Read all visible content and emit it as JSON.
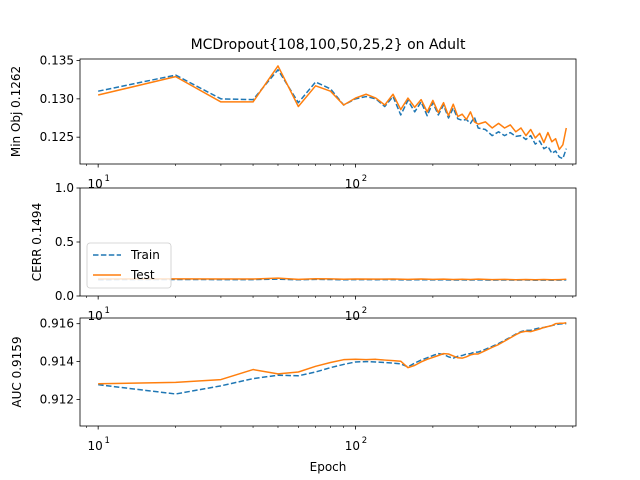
{
  "chart_data": {
    "type": "line",
    "title": "MCDropout{108,100,50,25,2} on Adult",
    "xlabel": "Epoch",
    "xscale": "log",
    "xlim": [
      8.5,
      720
    ],
    "x_major_ticks": [
      {
        "value": 10,
        "base": "10",
        "exp": "1"
      },
      {
        "value": 100,
        "base": "10",
        "exp": "2"
      }
    ],
    "colors": {
      "Train": "#1f77b4",
      "Test": "#ff7f0e"
    },
    "legend": {
      "panel": 1,
      "placement": "lower-left",
      "entries": [
        "Train",
        "Test"
      ]
    },
    "panels": [
      {
        "ylabel": "Min Obj 0.1262",
        "ylim": [
          0.1215,
          0.1352
        ],
        "yticks": [
          "0.125",
          "0.130",
          "0.135"
        ],
        "ytick_values": [
          0.125,
          0.13,
          0.135
        ],
        "series": [
          {
            "name": "Train",
            "style": "dashed",
            "x": [
              10,
              20,
              30,
              40,
              50,
              60,
              70,
              80,
              90,
              100,
              110,
              120,
              130,
              140,
              150,
              160,
              170,
              180,
              190,
              200,
              210,
              220,
              230,
              240,
              250,
              260,
              270,
              280,
              290,
              300,
              320,
              340,
              360,
              380,
              400,
              420,
              440,
              460,
              480,
              500,
              520,
              540,
              560,
              580,
              600,
              620,
              640,
              660
            ],
            "y": [
              0.131,
              0.1331,
              0.13,
              0.1299,
              0.1338,
              0.1295,
              0.1322,
              0.1313,
              0.1292,
              0.13,
              0.1303,
              0.13,
              0.129,
              0.1303,
              0.1279,
              0.1298,
              0.1283,
              0.1296,
              0.1278,
              0.1295,
              0.1279,
              0.1292,
              0.1275,
              0.1288,
              0.1274,
              0.1272,
              0.1273,
              0.1268,
              0.1276,
              0.1262,
              0.126,
              0.1252,
              0.1257,
              0.1252,
              0.1256,
              0.1251,
              0.1252,
              0.1247,
              0.1252,
              0.1241,
              0.1245,
              0.1235,
              0.1238,
              0.1229,
              0.1232,
              0.1224,
              0.1222,
              0.1235
            ]
          },
          {
            "name": "Test",
            "style": "solid",
            "x": [
              10,
              20,
              30,
              40,
              50,
              60,
              70,
              80,
              90,
              100,
              110,
              120,
              130,
              140,
              150,
              160,
              170,
              180,
              190,
              200,
              210,
              220,
              230,
              240,
              250,
              260,
              270,
              280,
              290,
              300,
              320,
              340,
              360,
              380,
              400,
              420,
              440,
              460,
              480,
              500,
              520,
              540,
              560,
              580,
              600,
              620,
              640,
              660
            ],
            "y": [
              0.1305,
              0.1329,
              0.1296,
              0.1296,
              0.1343,
              0.129,
              0.1317,
              0.131,
              0.1292,
              0.1301,
              0.1306,
              0.1301,
              0.1292,
              0.1306,
              0.1286,
              0.1301,
              0.1289,
              0.1299,
              0.1283,
              0.1298,
              0.1282,
              0.1295,
              0.1278,
              0.1293,
              0.1277,
              0.128,
              0.1273,
              0.1283,
              0.127,
              0.1267,
              0.127,
              0.1262,
              0.1268,
              0.1262,
              0.1266,
              0.1257,
              0.1262,
              0.1252,
              0.126,
              0.1249,
              0.1255,
              0.1243,
              0.1256,
              0.1244,
              0.1248,
              0.1234,
              0.124,
              0.1262
            ]
          }
        ]
      },
      {
        "ylabel": "CERR 0.1494",
        "ylim": [
          0,
          1
        ],
        "yticks": [
          "0.0",
          "0.5",
          "1.0"
        ],
        "ytick_values": [
          0.0,
          0.5,
          1.0
        ],
        "series": [
          {
            "name": "Train",
            "style": "dashed",
            "x": [
              10,
              20,
              30,
              40,
              50,
              60,
              70,
              80,
              90,
              100,
              120,
              140,
              160,
              180,
              200,
              220,
              240,
              260,
              280,
              300,
              340,
              380,
              420,
              460,
              500,
              540,
              580,
              620,
              660
            ],
            "y": [
              0.152,
              0.153,
              0.152,
              0.152,
              0.156,
              0.15,
              0.154,
              0.153,
              0.15,
              0.152,
              0.151,
              0.152,
              0.149,
              0.151,
              0.149,
              0.15,
              0.148,
              0.149,
              0.148,
              0.15,
              0.147,
              0.149,
              0.147,
              0.148,
              0.146,
              0.148,
              0.146,
              0.147,
              0.149
            ]
          },
          {
            "name": "Test",
            "style": "solid",
            "x": [
              10,
              20,
              30,
              40,
              50,
              60,
              70,
              80,
              90,
              100,
              120,
              140,
              160,
              180,
              200,
              220,
              240,
              260,
              280,
              300,
              340,
              380,
              420,
              460,
              500,
              540,
              580,
              620,
              660
            ],
            "y": [
              0.158,
              0.159,
              0.157,
              0.157,
              0.165,
              0.154,
              0.16,
              0.159,
              0.155,
              0.157,
              0.156,
              0.158,
              0.154,
              0.157,
              0.154,
              0.156,
              0.153,
              0.155,
              0.153,
              0.156,
              0.152,
              0.154,
              0.151,
              0.153,
              0.151,
              0.153,
              0.15,
              0.152,
              0.155
            ]
          }
        ]
      },
      {
        "ylabel": "AUC 0.9159",
        "ylim": [
          0.9106,
          0.9163
        ],
        "yticks": [
          "0.912",
          "0.914",
          "0.916"
        ],
        "ytick_values": [
          0.912,
          0.914,
          0.916
        ],
        "series": [
          {
            "name": "Train",
            "style": "dashed",
            "x": [
              10,
              20,
              30,
              40,
              50,
              60,
              70,
              80,
              90,
              100,
              110,
              120,
              130,
              140,
              150,
              160,
              170,
              180,
              190,
              200,
              210,
              220,
              230,
              240,
              250,
              260,
              270,
              280,
              290,
              300,
              320,
              340,
              360,
              380,
              400,
              420,
              440,
              460,
              480,
              500,
              520,
              540,
              560,
              580,
              600,
              620,
              640,
              660
            ],
            "y": [
              0.91278,
              0.91229,
              0.91272,
              0.9131,
              0.91328,
              0.91325,
              0.91345,
              0.91368,
              0.91385,
              0.91398,
              0.914,
              0.91398,
              0.91395,
              0.91392,
              0.91388,
              0.91372,
              0.91392,
              0.91408,
              0.9142,
              0.91432,
              0.91442,
              0.91438,
              0.91425,
              0.91418,
              0.91428,
              0.91432,
              0.9144,
              0.91442,
              0.9145,
              0.9145,
              0.91465,
              0.9148,
              0.91495,
              0.91512,
              0.91528,
              0.91545,
              0.91558,
              0.91565,
              0.91565,
              0.91572,
              0.91578,
              0.9158,
              0.91585,
              0.9159,
              0.91595,
              0.91598,
              0.916,
              0.916
            ]
          },
          {
            "name": "Test",
            "style": "solid",
            "x": [
              10,
              20,
              30,
              40,
              50,
              60,
              70,
              80,
              90,
              100,
              110,
              120,
              130,
              140,
              150,
              160,
              170,
              180,
              190,
              200,
              210,
              220,
              230,
              240,
              250,
              260,
              270,
              280,
              290,
              300,
              320,
              340,
              360,
              380,
              400,
              420,
              440,
              460,
              480,
              500,
              520,
              540,
              560,
              580,
              600,
              620,
              640,
              660
            ],
            "y": [
              0.91283,
              0.9129,
              0.91305,
              0.91358,
              0.91335,
              0.91345,
              0.91375,
              0.91395,
              0.9141,
              0.91412,
              0.9141,
              0.91412,
              0.91408,
              0.91405,
              0.91402,
              0.91368,
              0.9138,
              0.91398,
              0.91412,
              0.91422,
              0.91432,
              0.91442,
              0.9144,
              0.9143,
              0.9142,
              0.91418,
              0.91425,
              0.91435,
              0.9144,
              0.9144,
              0.91458,
              0.91475,
              0.9149,
              0.91508,
              0.91525,
              0.91542,
              0.91555,
              0.9156,
              0.91558,
              0.91565,
              0.91572,
              0.9158,
              0.91585,
              0.9159,
              0.916,
              0.91602,
              0.91602,
              0.91605
            ]
          }
        ]
      }
    ]
  }
}
